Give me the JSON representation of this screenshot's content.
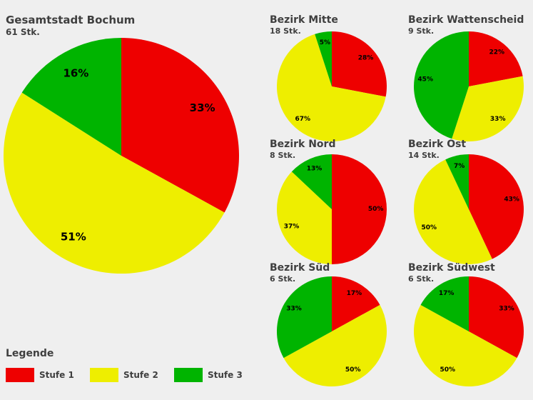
{
  "background_color": "#efefef",
  "text_color": "#3f3f3f",
  "series": [
    "Stufe 1",
    "Stufe 2",
    "Stufe 3"
  ],
  "series_colors": [
    "#ee0000",
    "#eeee00",
    "#00b400"
  ],
  "pie_config": {
    "start_angle": "top",
    "direction": "clockwise",
    "slice_label_color": "#000000"
  },
  "chart_data": [
    {
      "type": "pie",
      "title": "Gesamtstadt Bochum",
      "count_label": "61 Stk.",
      "categories": [
        "Stufe 1",
        "Stufe 2",
        "Stufe 3"
      ],
      "values_percent": [
        33,
        51,
        16
      ],
      "slice_labels": [
        "33%",
        "51%",
        "16%"
      ]
    },
    {
      "type": "pie",
      "title": "Bezirk Mitte",
      "count_label": "18 Stk.",
      "categories": [
        "Stufe 1",
        "Stufe 2",
        "Stufe 3"
      ],
      "values_percent": [
        28,
        67,
        5
      ],
      "slice_labels": [
        "28%",
        "67%",
        "5%"
      ]
    },
    {
      "type": "pie",
      "title": "Bezirk Wattenscheid",
      "count_label": "9 Stk.",
      "categories": [
        "Stufe 1",
        "Stufe 2",
        "Stufe 3"
      ],
      "values_percent": [
        22,
        33,
        45
      ],
      "slice_labels": [
        "22%",
        "33%",
        "45%"
      ]
    },
    {
      "type": "pie",
      "title": "Bezirk Nord",
      "count_label": "8 Stk.",
      "categories": [
        "Stufe 1",
        "Stufe 2",
        "Stufe 3"
      ],
      "values_percent": [
        50,
        37,
        13
      ],
      "slice_labels": [
        "50%",
        "37%",
        "13%"
      ]
    },
    {
      "type": "pie",
      "title": "Bezirk Ost",
      "count_label": "14 Stk.",
      "categories": [
        "Stufe 1",
        "Stufe 2",
        "Stufe 3"
      ],
      "values_percent": [
        43,
        50,
        7
      ],
      "slice_labels": [
        "43%",
        "50%",
        "7%"
      ]
    },
    {
      "type": "pie",
      "title": "Bezirk Süd",
      "count_label": "6 Stk.",
      "categories": [
        "Stufe 1",
        "Stufe 2",
        "Stufe 3"
      ],
      "values_percent": [
        17,
        50,
        33
      ],
      "slice_labels": [
        "17%",
        "50%",
        "33%"
      ]
    },
    {
      "type": "pie",
      "title": "Bezirk Südwest",
      "count_label": "6 Stk.",
      "categories": [
        "Stufe 1",
        "Stufe 2",
        "Stufe 3"
      ],
      "values_percent": [
        33,
        50,
        17
      ],
      "slice_labels": [
        "33%",
        "50%",
        "17%"
      ]
    }
  ],
  "legend": {
    "heading": "Legende",
    "items": [
      {
        "label": "Stufe 1",
        "color": "#ee0000"
      },
      {
        "label": "Stufe 2",
        "color": "#eeee00"
      },
      {
        "label": "Stufe 3",
        "color": "#00b400"
      }
    ]
  }
}
